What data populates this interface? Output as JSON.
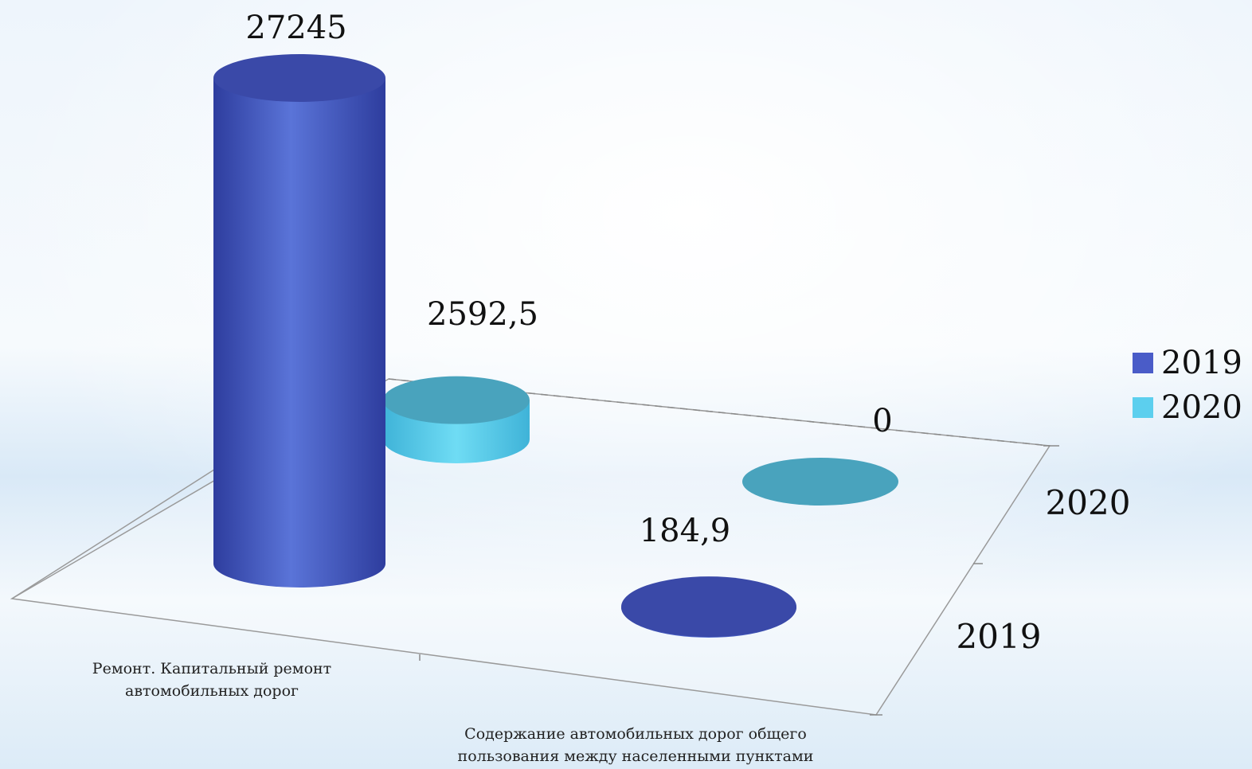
{
  "colors": {
    "series_2019_top": "#3a49a8",
    "series_2019_side_dark": "#2e3d9e",
    "series_2019_side_light": "#5a74d8",
    "series_2020_top": "#49a3bd",
    "series_2020_side_dark": "#3fb3d8",
    "series_2020_side_light": "#6fdcf4",
    "legend_2019": "#4a5cc8",
    "legend_2020": "#5ccfee"
  },
  "chart_data": {
    "type": "bar",
    "style": "3d-cylinder",
    "categories": [
      [
        "Ремонт. Капитальный ремонт",
        "автомобильных дорог"
      ],
      [
        "Содержание автомобильных дорог общего",
        "пользования между населенными пунктами"
      ]
    ],
    "depth_labels": [
      "2019",
      "2020"
    ],
    "series": [
      {
        "name": "2019",
        "values": [
          27245,
          184.9
        ],
        "labels": [
          "27245",
          "184,9"
        ]
      },
      {
        "name": "2020",
        "values": [
          2592.5,
          0
        ],
        "labels": [
          "2592,5",
          "0"
        ]
      }
    ],
    "legend_position": "right",
    "grid": false
  }
}
